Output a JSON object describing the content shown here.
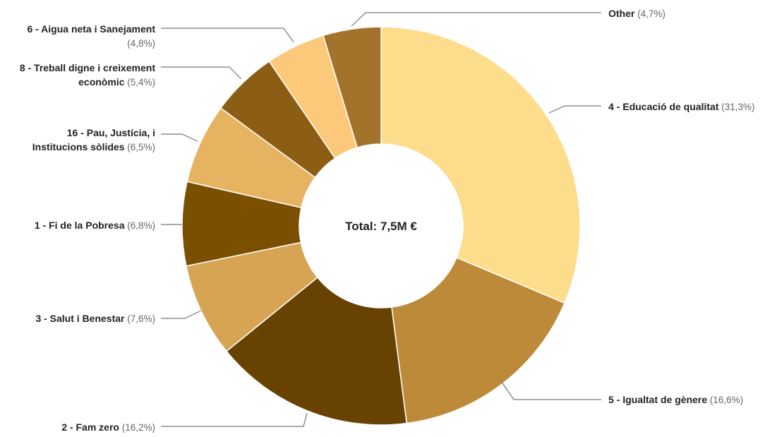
{
  "chart_data": {
    "type": "pie",
    "donut": true,
    "center_label": "Total: 7,5M €",
    "slices": [
      {
        "lines": [
          "4 - Educació de qualitat"
        ],
        "pct_text": "(31,3%)",
        "value": 31.3,
        "color": "#fddd8c"
      },
      {
        "lines": [
          "5 - Igualtat de gènere"
        ],
        "pct_text": "(16,6%)",
        "value": 16.6,
        "color": "#bd8a3a"
      },
      {
        "lines": [
          "2 - Fam zero"
        ],
        "pct_text": "(16,2%)",
        "value": 16.2,
        "color": "#684200"
      },
      {
        "lines": [
          "3 - Salut i Benestar"
        ],
        "pct_text": "(7,6%)",
        "value": 7.6,
        "color": "#d7a454"
      },
      {
        "lines": [
          "1 - Fi de la Pobresa"
        ],
        "pct_text": "(6,8%)",
        "value": 6.8,
        "color": "#7a5000"
      },
      {
        "lines": [
          "16 - Pau, Justícia, i",
          "Institucions sòlides"
        ],
        "pct_text": "(6,5%)",
        "value": 6.5,
        "color": "#e6b361"
      },
      {
        "lines": [
          "8 - Treball digne i creixement",
          "econòmic"
        ],
        "pct_text": "(5,4%)",
        "value": 5.4,
        "color": "#8c5e14"
      },
      {
        "lines": [
          "6 - Aigua neta i Sanejament"
        ],
        "pct_text": "(4,8%)",
        "value": 4.8,
        "color": "#fcc97a"
      },
      {
        "lines": [
          "Other"
        ],
        "pct_text": "(4,7%)",
        "value": 4.7,
        "color": "#a4732b"
      }
    ]
  }
}
